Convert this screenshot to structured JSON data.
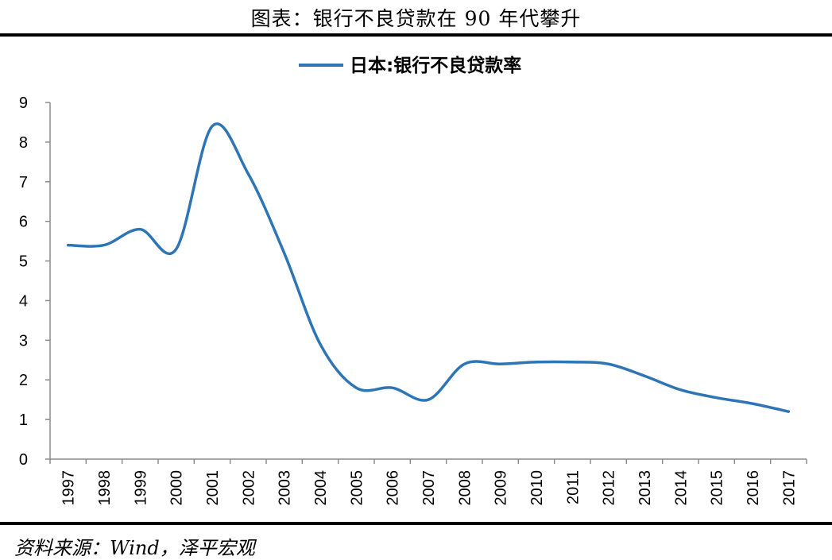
{
  "header": {
    "title": "图表：银行不良贷款在 90 年代攀升"
  },
  "footer": {
    "source": "资料来源：Wind，泽平宏观"
  },
  "chart_data": {
    "type": "line",
    "categories": [
      "1997",
      "1998",
      "1999",
      "2000",
      "2001",
      "2002",
      "2003",
      "2004",
      "2005",
      "2006",
      "2007",
      "2008",
      "2009",
      "2010",
      "2011",
      "2012",
      "2013",
      "2014",
      "2015",
      "2016",
      "2017"
    ],
    "series": [
      {
        "name": "日本:银行不良贷款率",
        "values": [
          5.4,
          5.4,
          5.8,
          5.3,
          8.4,
          7.2,
          5.2,
          2.9,
          1.8,
          1.8,
          1.5,
          2.4,
          2.4,
          2.45,
          2.45,
          2.4,
          2.1,
          1.75,
          1.55,
          1.4,
          1.2
        ],
        "color": "#2e75b6"
      }
    ],
    "ylim": [
      0,
      9
    ],
    "yticks": [
      "0",
      "1",
      "2",
      "3",
      "4",
      "5",
      "6",
      "7",
      "8",
      "9"
    ],
    "grid": false,
    "legend_position": "top-center"
  }
}
